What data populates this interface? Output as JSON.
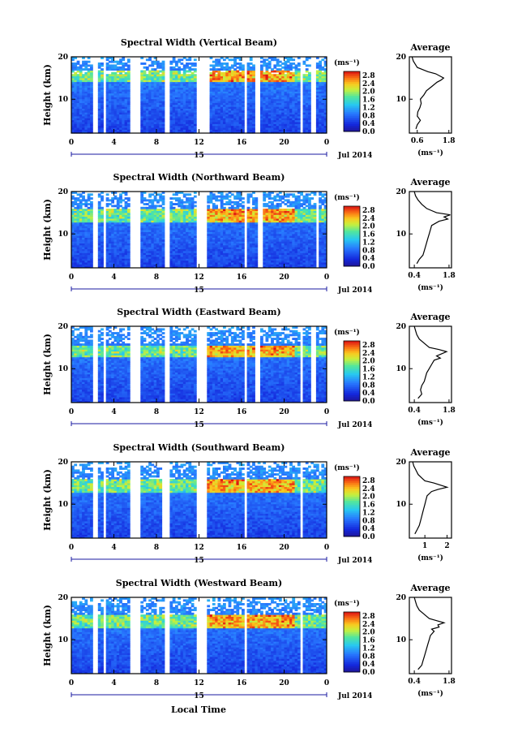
{
  "figure": {
    "xlabel": "Local Time",
    "ylabel": "Height (km)",
    "date_label": "Jul 2014",
    "day_marker": "15",
    "colorbar_unit": "(ms⁻¹)",
    "profile_title": "Average",
    "profile_xunit": "(ms⁻¹)"
  },
  "chart_data": [
    {
      "type": "heatmap",
      "title": "Spectral Width (Vertical Beam)",
      "xlabel": "",
      "ylabel": "Height (km)",
      "xticks": [
        "0",
        "4",
        "8",
        "12",
        "16",
        "20",
        "0"
      ],
      "yticks": [
        "10",
        "20"
      ],
      "xlim": [
        0,
        24
      ],
      "ylim": [
        2,
        20
      ],
      "colorbar": {
        "ticks": [
          "0.0",
          "0.4",
          "0.8",
          "1.2",
          "1.6",
          "2.0",
          "2.4",
          "2.8"
        ],
        "range": [
          0,
          3.0
        ]
      },
      "data_gaps_hours": [
        [
          2.0,
          2.5
        ],
        [
          2.9,
          3.3
        ],
        [
          5.6,
          6.6
        ],
        [
          8.7,
          9.3
        ],
        [
          11.7,
          13.0
        ],
        [
          16.3,
          16.5
        ],
        [
          17.2,
          17.8
        ],
        [
          21.6,
          21.8
        ],
        [
          22.6,
          22.9
        ]
      ],
      "high_width_layer_km": [
        14,
        17
      ],
      "profile": {
        "title": "Average",
        "xticks": [
          "0.6",
          "1.8"
        ],
        "xlim": [
          0.3,
          1.9
        ],
        "ylim": [
          2,
          20
        ],
        "height_km": [
          3,
          4,
          5,
          6,
          7,
          8,
          9,
          10,
          11,
          12,
          13,
          14,
          14.5,
          15,
          15.5,
          16,
          16.5,
          17,
          17.5,
          18,
          19,
          20
        ],
        "value": [
          0.55,
          0.6,
          0.72,
          0.6,
          0.62,
          0.7,
          0.75,
          0.72,
          0.85,
          0.95,
          1.15,
          1.35,
          1.5,
          1.6,
          1.45,
          1.3,
          1.0,
          0.8,
          0.6,
          0.55,
          0.45,
          0.4
        ]
      }
    },
    {
      "type": "heatmap",
      "title": "Spectral Width (Northward Beam)",
      "xlabel": "",
      "ylabel": "Height (km)",
      "xticks": [
        "0",
        "4",
        "8",
        "12",
        "16",
        "20",
        "0"
      ],
      "yticks": [
        "10",
        "20"
      ],
      "xlim": [
        0,
        24
      ],
      "ylim": [
        2,
        20
      ],
      "colorbar": {
        "ticks": [
          "0.0",
          "0.4",
          "0.8",
          "1.2",
          "1.6",
          "2.0",
          "2.4",
          "2.8"
        ],
        "range": [
          0,
          3.0
        ]
      },
      "data_gaps_hours": [
        [
          2.0,
          2.5
        ],
        [
          2.9,
          3.3
        ],
        [
          5.6,
          6.5
        ],
        [
          8.7,
          9.2
        ],
        [
          11.7,
          12.8
        ],
        [
          16.2,
          16.6
        ],
        [
          17.5,
          17.9
        ],
        [
          22.9,
          23.2
        ]
      ],
      "high_width_layer_km": [
        13,
        16
      ],
      "profile": {
        "title": "Average",
        "xticks": [
          "0.4",
          "1.8"
        ],
        "xlim": [
          0.2,
          1.9
        ],
        "ylim": [
          2,
          20
        ],
        "height_km": [
          3,
          4,
          5,
          6,
          7,
          8,
          9,
          10,
          11,
          12,
          13,
          13.5,
          14,
          14.5,
          15,
          15.5,
          16,
          17,
          18,
          19,
          20
        ],
        "value": [
          0.5,
          0.6,
          0.75,
          0.8,
          0.85,
          0.9,
          0.95,
          1.0,
          1.05,
          1.1,
          1.4,
          1.75,
          1.6,
          1.85,
          1.3,
          1.1,
          0.9,
          0.7,
          0.55,
          0.45,
          0.4
        ]
      }
    },
    {
      "type": "heatmap",
      "title": "Spectral Width (Eastward Beam)",
      "xlabel": "",
      "ylabel": "Height (km)",
      "xticks": [
        "0",
        "4",
        "8",
        "12",
        "16",
        "20",
        "0"
      ],
      "yticks": [
        "10",
        "20"
      ],
      "xlim": [
        0,
        24
      ],
      "ylim": [
        2,
        20
      ],
      "colorbar": {
        "ticks": [
          "0.0",
          "0.4",
          "0.8",
          "1.2",
          "1.6",
          "2.0",
          "2.4",
          "2.8"
        ],
        "range": [
          0,
          3.0
        ]
      },
      "data_gaps_hours": [
        [
          1.9,
          2.4
        ],
        [
          2.9,
          3.3
        ],
        [
          5.6,
          6.6
        ],
        [
          8.7,
          9.3
        ],
        [
          11.7,
          12.8
        ],
        [
          16.2,
          16.6
        ],
        [
          17.3,
          17.7
        ],
        [
          21.6,
          21.8
        ],
        [
          22.6,
          22.9
        ]
      ],
      "high_width_layer_km": [
        13,
        15.5
      ],
      "profile": {
        "title": "Average",
        "xticks": [
          "0.4",
          "1.8"
        ],
        "xlim": [
          0.2,
          1.9
        ],
        "ylim": [
          2,
          20
        ],
        "height_km": [
          3,
          4,
          5,
          6,
          7,
          8,
          9,
          10,
          11,
          12,
          12.5,
          13,
          13.5,
          14,
          14.5,
          15,
          16,
          17,
          18,
          19,
          20
        ],
        "value": [
          0.55,
          0.7,
          0.65,
          0.7,
          0.8,
          0.85,
          0.9,
          1.0,
          1.1,
          1.2,
          1.45,
          1.3,
          1.5,
          1.7,
          1.4,
          1.0,
          0.8,
          0.6,
          0.5,
          0.45,
          0.4
        ]
      }
    },
    {
      "type": "heatmap",
      "title": "Spectral Width (Southward Beam)",
      "xlabel": "",
      "ylabel": "Height (km)",
      "xticks": [
        "0",
        "4",
        "8",
        "12",
        "16",
        "20",
        "0"
      ],
      "yticks": [
        "10",
        "20"
      ],
      "xlim": [
        0,
        24
      ],
      "ylim": [
        2,
        20
      ],
      "colorbar": {
        "ticks": [
          "0.0",
          "0.4",
          "0.8",
          "1.2",
          "1.6",
          "2.0",
          "2.4",
          "2.8"
        ],
        "range": [
          0,
          3.0
        ]
      },
      "data_gaps_hours": [
        [
          2.0,
          2.5
        ],
        [
          2.9,
          3.3
        ],
        [
          5.5,
          6.6
        ],
        [
          8.6,
          9.3
        ],
        [
          11.7,
          12.7
        ],
        [
          16.3,
          16.6
        ],
        [
          21.6,
          21.8
        ]
      ],
      "high_width_layer_km": [
        13,
        16
      ],
      "profile": {
        "title": "Average",
        "xticks": [
          "1",
          "2"
        ],
        "xlim": [
          0.3,
          2.2
        ],
        "ylim": [
          2,
          20
        ],
        "height_km": [
          3,
          4,
          5,
          6,
          7,
          8,
          9,
          10,
          11,
          12,
          13,
          13.5,
          14,
          14.5,
          15,
          15.5,
          16,
          17,
          18,
          19,
          20
        ],
        "value": [
          0.55,
          0.65,
          0.75,
          0.8,
          0.85,
          0.9,
          0.95,
          1.0,
          1.05,
          1.1,
          1.3,
          1.6,
          2.0,
          1.7,
          1.4,
          1.0,
          0.9,
          0.7,
          0.6,
          0.5,
          0.45
        ]
      }
    },
    {
      "type": "heatmap",
      "title": "Spectral Width (Westward Beam)",
      "xlabel": "Local Time",
      "ylabel": "Height (km)",
      "xticks": [
        "0",
        "4",
        "8",
        "12",
        "16",
        "20",
        "0"
      ],
      "yticks": [
        "10",
        "20"
      ],
      "xlim": [
        0,
        24
      ],
      "ylim": [
        2,
        20
      ],
      "colorbar": {
        "ticks": [
          "0.0",
          "0.4",
          "0.8",
          "1.2",
          "1.6",
          "2.0",
          "2.4",
          "2.8"
        ],
        "range": [
          0,
          3.0
        ]
      },
      "data_gaps_hours": [
        [
          2.0,
          2.5
        ],
        [
          2.9,
          3.3
        ],
        [
          5.6,
          6.6
        ],
        [
          8.7,
          9.2
        ],
        [
          11.7,
          12.7
        ],
        [
          16.2,
          16.6
        ],
        [
          21.6,
          21.8
        ]
      ],
      "high_width_layer_km": [
        13,
        16
      ],
      "profile": {
        "title": "Average",
        "xticks": [
          "0.4",
          "1.8"
        ],
        "xlim": [
          0.2,
          1.9
        ],
        "ylim": [
          2,
          20
        ],
        "height_km": [
          3,
          4,
          5,
          6,
          7,
          8,
          9,
          10,
          11,
          12,
          12.5,
          13,
          13.5,
          14,
          14.5,
          15,
          16,
          17,
          18,
          19,
          20
        ],
        "value": [
          0.55,
          0.7,
          0.75,
          0.8,
          0.85,
          0.9,
          0.95,
          1.0,
          1.05,
          1.2,
          1.1,
          1.4,
          1.35,
          1.6,
          1.3,
          1.0,
          0.8,
          0.6,
          0.5,
          0.45,
          0.4
        ]
      }
    }
  ]
}
